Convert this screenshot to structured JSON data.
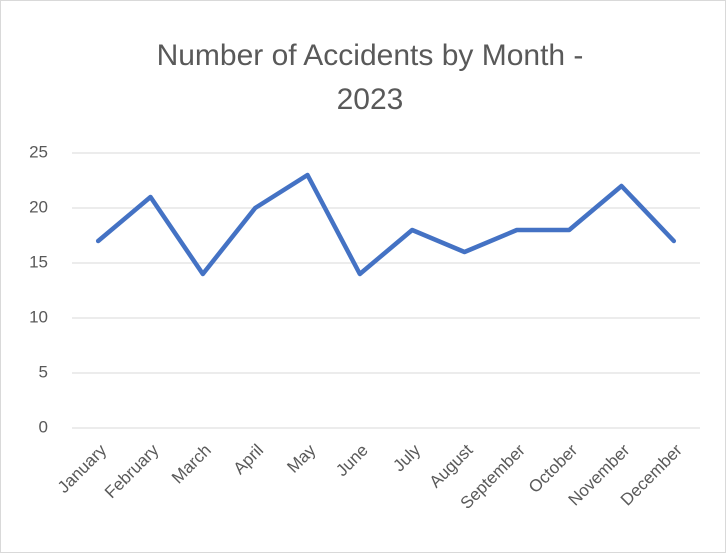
{
  "chart_data": {
    "type": "line",
    "title": "Number of Accidents by Month - 2023",
    "categories": [
      "January",
      "February",
      "March",
      "April",
      "May",
      "June",
      "July",
      "August",
      "September",
      "October",
      "November",
      "December"
    ],
    "series": [
      {
        "name": "Number of Accidents",
        "color": "#4472c4",
        "values": [
          17,
          21,
          14,
          20,
          23,
          14,
          18,
          16,
          18,
          18,
          22,
          17
        ]
      }
    ],
    "ylim": [
      0,
      25
    ],
    "yticks": [
      0,
      5,
      10,
      15,
      20,
      25
    ],
    "grid": true
  }
}
